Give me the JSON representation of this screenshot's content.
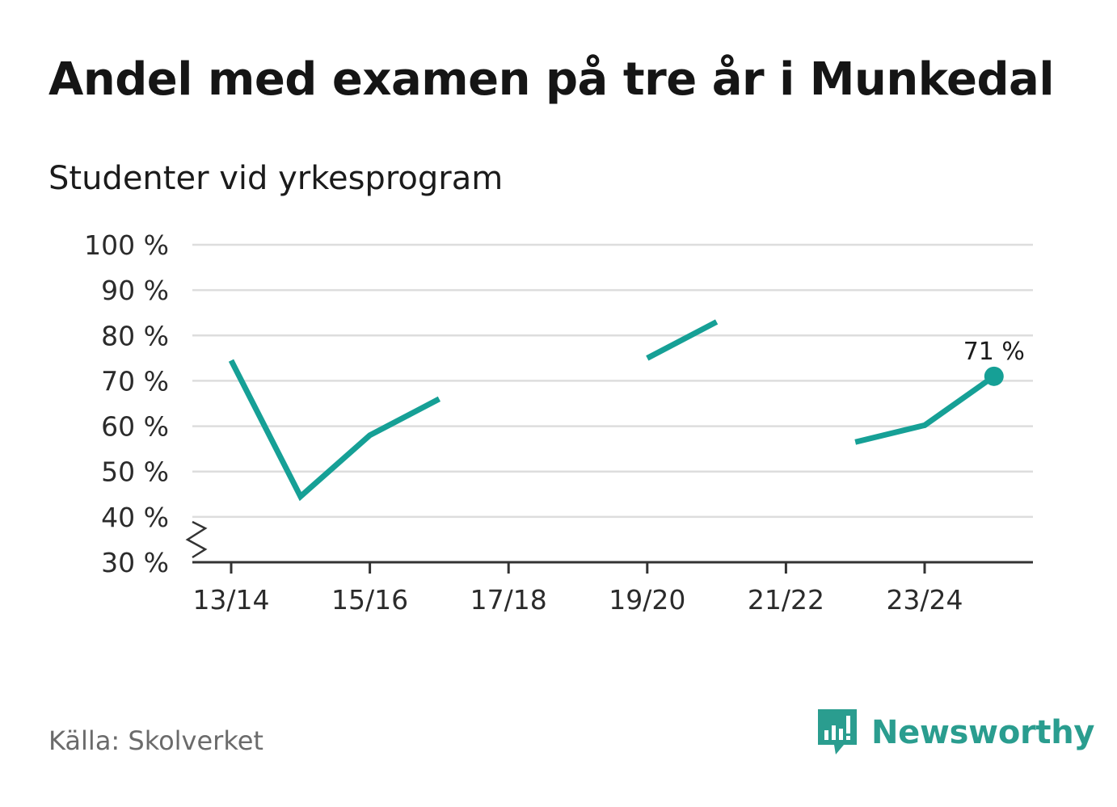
{
  "header": {
    "title": "Andel med examen på tre år i Munkedal",
    "subtitle": "Studenter vid yrkesprogram"
  },
  "footer": {
    "source": "Källa: Skolverket",
    "brand": "Newsworthy"
  },
  "colors": {
    "series": "#16a096",
    "grid": "#dddddd",
    "axis": "#333333"
  },
  "chart_data": {
    "type": "line",
    "title": "Andel med examen på tre år i Munkedal",
    "subtitle": "Studenter vid yrkesprogram",
    "xlabel": "",
    "ylabel": "",
    "ylim": [
      30,
      100
    ],
    "y_ticks": [
      30,
      40,
      50,
      60,
      70,
      80,
      90,
      100
    ],
    "y_tick_labels": [
      "30 %",
      "40 %",
      "50 %",
      "60 %",
      "70 %",
      "80 %",
      "90 %",
      "100 %"
    ],
    "categories": [
      "13/14",
      "14/15",
      "15/16",
      "16/17",
      "17/18",
      "18/19",
      "19/20",
      "20/21",
      "21/22",
      "22/23",
      "23/24",
      "24/25"
    ],
    "x_tick_labels": [
      "13/14",
      "15/16",
      "17/18",
      "19/20",
      "21/22",
      "23/24"
    ],
    "series": [
      {
        "name": "Studenter vid yrkesprogram",
        "values": [
          74.5,
          44.5,
          58,
          66,
          null,
          null,
          75,
          83,
          null,
          56.5,
          60.2,
          71
        ]
      }
    ],
    "annotations": [
      {
        "category": "24/25",
        "value": 71,
        "label": "71 %"
      }
    ],
    "grid": true,
    "y_axis_break": true
  }
}
